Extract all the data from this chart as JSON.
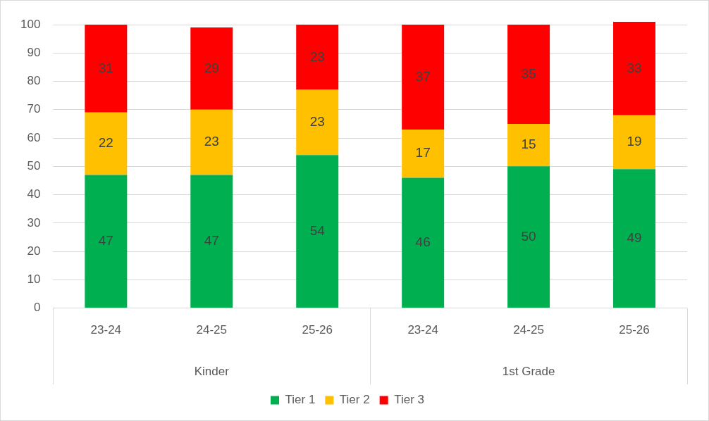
{
  "chart_data": {
    "type": "bar",
    "stacked": true,
    "categories": [
      "23-24",
      "24-25",
      "25-26",
      "23-24",
      "24-25",
      "25-26"
    ],
    "annotations": [
      "Kinder",
      "1st Grade"
    ],
    "series": [
      {
        "name": "Tier 1",
        "color": "#00b050",
        "values": [
          47,
          47,
          54,
          46,
          50,
          49
        ]
      },
      {
        "name": "Tier 2",
        "color": "#ffc000",
        "values": [
          22,
          23,
          23,
          17,
          15,
          19
        ]
      },
      {
        "name": "Tier 3",
        "color": "#ff0000",
        "values": [
          31,
          29,
          23,
          37,
          35,
          33
        ]
      }
    ],
    "ylim": [
      0,
      101
    ],
    "yticks": [
      0,
      10,
      20,
      30,
      40,
      50,
      60,
      70,
      80,
      90,
      100
    ],
    "grid": "y",
    "legend": "bottom",
    "data_labels": true
  }
}
